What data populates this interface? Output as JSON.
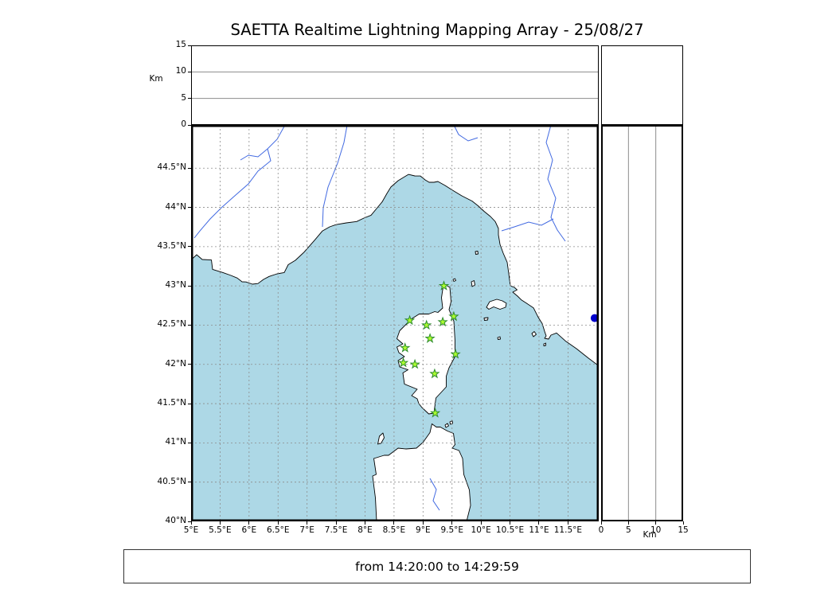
{
  "title": "SAETTA Realtime Lightning Mapping Array - 25/08/27",
  "time_range_label": "from 14:20:00 to 14:29:59",
  "chart_data": {
    "type": "scatter",
    "title": "SAETTA Realtime Lightning Mapping Array - 25/08/27",
    "layout": "geographic map panel with altitude-vs-longitude top panel and altitude-vs-latitude right panel",
    "grid": "0.5 degree dashed graticule",
    "altitude_axis": {
      "label": "Km",
      "range_km": [
        0,
        15
      ],
      "tick_labels": [
        "0",
        "5",
        "10",
        "15"
      ],
      "tick_values": [
        0,
        5,
        10,
        15
      ],
      "gridlines_km": [
        5,
        10
      ]
    },
    "map_panel": {
      "lon_range": [
        5.0,
        12.03
      ],
      "lat_range": [
        40.0,
        45.05
      ],
      "lon_ticks": [
        {
          "label": "5°E",
          "value": 5.0
        },
        {
          "label": "5.5°E",
          "value": 5.5
        },
        {
          "label": "6°E",
          "value": 6.0
        },
        {
          "label": "6.5°E",
          "value": 6.5
        },
        {
          "label": "7°E",
          "value": 7.0
        },
        {
          "label": "7.5°E",
          "value": 7.5
        },
        {
          "label": "8°E",
          "value": 8.0
        },
        {
          "label": "8.5°E",
          "value": 8.5
        },
        {
          "label": "9°E",
          "value": 9.0
        },
        {
          "label": "9.5°E",
          "value": 9.5
        },
        {
          "label": "10°E",
          "value": 10.0
        },
        {
          "label": "10.5°E",
          "value": 10.5
        },
        {
          "label": "11°E",
          "value": 11.0
        },
        {
          "label": "11.5°E",
          "value": 11.5
        }
      ],
      "lat_ticks": [
        {
          "label": "44.5°N",
          "value": 44.5
        },
        {
          "label": "44°N",
          "value": 44.0
        },
        {
          "label": "43.5°N",
          "value": 43.5
        },
        {
          "label": "43°N",
          "value": 43.0
        },
        {
          "label": "42.5°N",
          "value": 42.5
        },
        {
          "label": "42°N",
          "value": 42.0
        },
        {
          "label": "41.5°N",
          "value": 41.5
        },
        {
          "label": "41°N",
          "value": 41.0
        },
        {
          "label": "40.5°N",
          "value": 40.5
        },
        {
          "label": "40°N",
          "value": 40.0
        }
      ],
      "sea_color": "#ADD8E6",
      "land_color": "#FFFFFF",
      "river_color": "#4169E1",
      "stations": [
        {
          "lon": 9.36,
          "lat": 43.0
        },
        {
          "lon": 8.77,
          "lat": 42.56
        },
        {
          "lon": 9.06,
          "lat": 42.5
        },
        {
          "lon": 9.34,
          "lat": 42.54
        },
        {
          "lon": 9.53,
          "lat": 42.61
        },
        {
          "lon": 9.12,
          "lat": 42.33
        },
        {
          "lon": 8.69,
          "lat": 42.21
        },
        {
          "lon": 9.56,
          "lat": 42.13
        },
        {
          "lon": 8.66,
          "lat": 42.02
        },
        {
          "lon": 8.86,
          "lat": 42.0
        },
        {
          "lon": 9.2,
          "lat": 41.88
        },
        {
          "lon": 9.21,
          "lat": 41.38
        }
      ],
      "station_marker": {
        "shape": "star",
        "fill": "#ADFF2F",
        "edge": "#2E8B2E"
      },
      "event_points": [
        {
          "lon": 11.96,
          "lat": 42.59,
          "color": "#0000CD"
        }
      ]
    }
  }
}
